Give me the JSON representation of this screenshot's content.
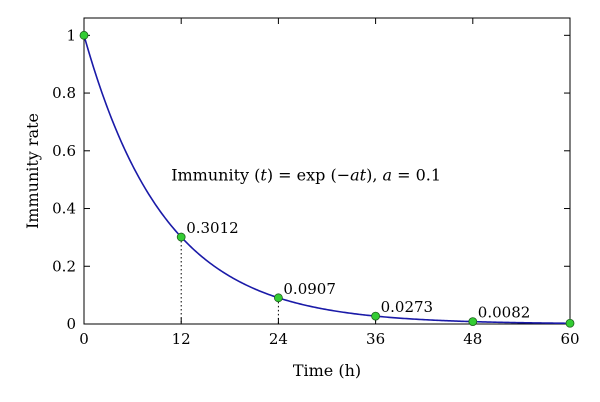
{
  "chart_data": {
    "type": "line",
    "xlabel": "Time (h)",
    "ylabel": "Immunity rate",
    "xlim": [
      0,
      60
    ],
    "ylim": [
      0,
      1.06
    ],
    "xticks": [
      0,
      12,
      24,
      36,
      48,
      60
    ],
    "xtick_labels": [
      "0",
      "12",
      "24",
      "36",
      "48",
      "60"
    ],
    "yticks": [
      0,
      0.2,
      0.4,
      0.6,
      0.8,
      1
    ],
    "ytick_labels": [
      "0",
      "0.2",
      "0.4",
      "0.6",
      "0.8",
      "1"
    ],
    "grid": false,
    "series": [
      {
        "function": "exp(-0.1*t)",
        "color": "#1a1aa8",
        "x_range": [
          0,
          60
        ]
      }
    ],
    "markers": {
      "color": "#33cc33",
      "points": [
        {
          "x": 0,
          "y": 1,
          "label": ""
        },
        {
          "x": 12,
          "y": 0.3012,
          "label": "0.3012"
        },
        {
          "x": 24,
          "y": 0.0907,
          "label": "0.0907"
        },
        {
          "x": 36,
          "y": 0.0273,
          "label": "0.0273"
        },
        {
          "x": 48,
          "y": 0.0082,
          "label": "0.0082"
        },
        {
          "x": 60,
          "y": 0.0025,
          "label": ""
        }
      ]
    },
    "annotation": {
      "parts": [
        {
          "text": "Immunity (",
          "italic": false
        },
        {
          "text": "t",
          "italic": true
        },
        {
          "text": ") = exp (−",
          "italic": false
        },
        {
          "text": "at",
          "italic": true
        },
        {
          "text": "), ",
          "italic": false
        },
        {
          "text": "a",
          "italic": true
        },
        {
          "text": " = 0.1",
          "italic": false
        }
      ],
      "x": 12,
      "y": 0.5
    }
  }
}
